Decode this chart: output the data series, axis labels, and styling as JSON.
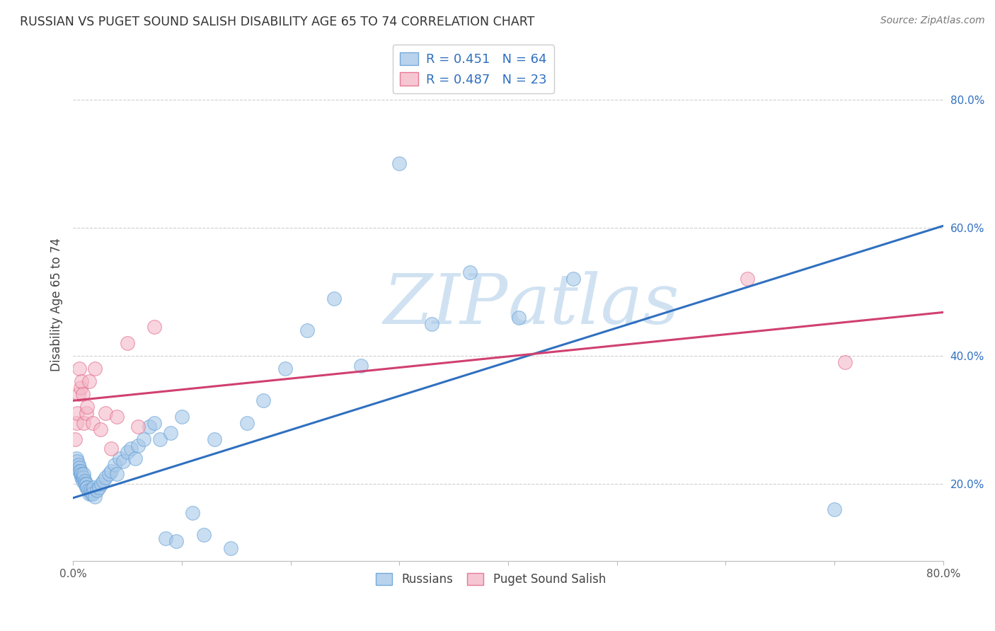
{
  "title": "RUSSIAN VS PUGET SOUND SALISH DISABILITY AGE 65 TO 74 CORRELATION CHART",
  "source": "Source: ZipAtlas.com",
  "ylabel": "Disability Age 65 to 74",
  "xlim": [
    0.0,
    0.8
  ],
  "ylim": [
    0.08,
    0.88
  ],
  "x_ticks": [
    0.0,
    0.1,
    0.2,
    0.3,
    0.4,
    0.5,
    0.6,
    0.7,
    0.8
  ],
  "x_tick_labels": [
    "0.0%",
    "",
    "",
    "",
    "",
    "",
    "",
    "",
    "80.0%"
  ],
  "y_ticks": [
    0.2,
    0.4,
    0.6,
    0.8
  ],
  "y_tick_labels": [
    "20.0%",
    "40.0%",
    "60.0%",
    "80.0%"
  ],
  "blue_fill": "#a8c8e8",
  "blue_edge": "#5b9bd5",
  "pink_fill": "#f4b8c8",
  "pink_edge": "#e06080",
  "blue_line_color": "#3070c0",
  "pink_line_color": "#d04070",
  "watermark_color": "#c8ddf0",
  "russians_x": [
    0.003,
    0.004,
    0.005,
    0.006,
    0.006,
    0.007,
    0.007,
    0.008,
    0.008,
    0.009,
    0.009,
    0.01,
    0.01,
    0.011,
    0.011,
    0.012,
    0.012,
    0.013,
    0.014,
    0.015,
    0.016,
    0.017,
    0.018,
    0.019,
    0.02,
    0.022,
    0.024,
    0.026,
    0.028,
    0.03,
    0.033,
    0.035,
    0.038,
    0.04,
    0.043,
    0.046,
    0.05,
    0.053,
    0.057,
    0.06,
    0.065,
    0.07,
    0.075,
    0.08,
    0.085,
    0.09,
    0.095,
    0.1,
    0.11,
    0.12,
    0.13,
    0.145,
    0.16,
    0.175,
    0.195,
    0.215,
    0.24,
    0.265,
    0.3,
    0.33,
    0.365,
    0.41,
    0.46,
    0.7
  ],
  "russians_y": [
    0.24,
    0.235,
    0.23,
    0.225,
    0.22,
    0.215,
    0.22,
    0.21,
    0.215,
    0.21,
    0.205,
    0.21,
    0.215,
    0.205,
    0.2,
    0.2,
    0.195,
    0.195,
    0.19,
    0.185,
    0.19,
    0.185,
    0.185,
    0.195,
    0.18,
    0.19,
    0.195,
    0.2,
    0.205,
    0.21,
    0.215,
    0.22,
    0.23,
    0.215,
    0.24,
    0.235,
    0.25,
    0.255,
    0.24,
    0.26,
    0.27,
    0.29,
    0.295,
    0.27,
    0.115,
    0.28,
    0.11,
    0.305,
    0.155,
    0.12,
    0.27,
    0.1,
    0.295,
    0.33,
    0.38,
    0.44,
    0.49,
    0.385,
    0.7,
    0.45,
    0.53,
    0.46,
    0.52,
    0.16
  ],
  "salish_x": [
    0.002,
    0.003,
    0.004,
    0.005,
    0.006,
    0.007,
    0.008,
    0.009,
    0.01,
    0.012,
    0.013,
    0.015,
    0.018,
    0.02,
    0.025,
    0.03,
    0.035,
    0.04,
    0.05,
    0.06,
    0.075,
    0.62,
    0.71
  ],
  "salish_y": [
    0.27,
    0.295,
    0.31,
    0.34,
    0.38,
    0.35,
    0.36,
    0.34,
    0.295,
    0.31,
    0.32,
    0.36,
    0.295,
    0.38,
    0.285,
    0.31,
    0.255,
    0.305,
    0.42,
    0.29,
    0.445,
    0.52,
    0.39
  ],
  "blue_trend_x": [
    0.0,
    0.8
  ],
  "blue_trend_y": [
    0.178,
    0.603
  ],
  "pink_trend_x": [
    0.0,
    0.8
  ],
  "pink_trend_y": [
    0.33,
    0.468
  ]
}
